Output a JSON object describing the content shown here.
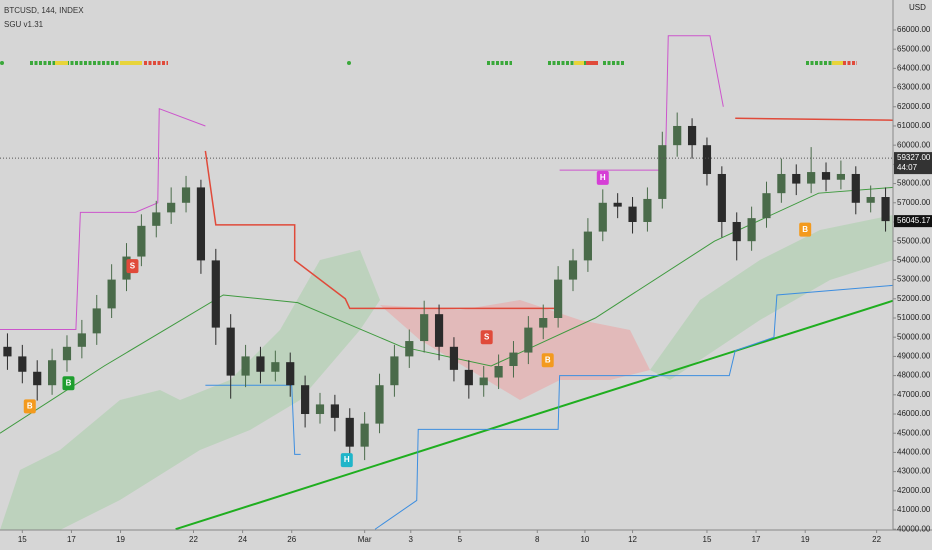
{
  "header": {
    "symbol": "BTCUSD, 144, INDEX",
    "indicator": "SGU v1.31",
    "currency": "USD"
  },
  "chart_data": {
    "type": "candlestick",
    "ylim": [
      39960,
      67560
    ],
    "xlim": [
      0,
      60
    ],
    "yticks": [
      {
        "value": 40000,
        "label": "40000.00"
      },
      {
        "value": 41000,
        "label": "41000.00"
      },
      {
        "value": 42000,
        "label": "42000.00"
      },
      {
        "value": 43000,
        "label": "43000.00"
      },
      {
        "value": 44000,
        "label": "44000.00"
      },
      {
        "value": 45000,
        "label": "45000.00"
      },
      {
        "value": 46000,
        "label": "46000.00"
      },
      {
        "value": 47000,
        "label": "47000.00"
      },
      {
        "value": 48000,
        "label": "48000.00"
      },
      {
        "value": 49000,
        "label": "49000.00"
      },
      {
        "value": 50000,
        "label": "50000.00"
      },
      {
        "value": 51000,
        "label": "51000.00"
      },
      {
        "value": 52000,
        "label": "52000.00"
      },
      {
        "value": 53000,
        "label": "53000.00"
      },
      {
        "value": 54000,
        "label": "54000.00"
      },
      {
        "value": 55000,
        "label": "55000.00"
      },
      {
        "value": 56000,
        "label": "56000.00"
      },
      {
        "value": 57000,
        "label": "57000.00"
      },
      {
        "value": 58000,
        "label": "58000.00"
      },
      {
        "value": 59000,
        "label": "59000.00"
      },
      {
        "value": 60000,
        "label": "60000.00"
      },
      {
        "value": 61000,
        "label": "61000.00"
      },
      {
        "value": 62000,
        "label": "62000.00"
      },
      {
        "value": 63000,
        "label": "63000.00"
      },
      {
        "value": 64000,
        "label": "64000.00"
      },
      {
        "value": 65000,
        "label": "65000.00"
      },
      {
        "value": 66000,
        "label": "66000.00"
      }
    ],
    "xticks": [
      {
        "value": 1.5,
        "label": "15"
      },
      {
        "value": 4.8,
        "label": "17"
      },
      {
        "value": 8.1,
        "label": "19"
      },
      {
        "value": 13.0,
        "label": "22"
      },
      {
        "value": 16.3,
        "label": "24"
      },
      {
        "value": 19.6,
        "label": "26"
      },
      {
        "value": 24.5,
        "label": "Mar"
      },
      {
        "value": 27.6,
        "label": "3"
      },
      {
        "value": 30.9,
        "label": "5"
      },
      {
        "value": 36.1,
        "label": "8"
      },
      {
        "value": 39.3,
        "label": "10"
      },
      {
        "value": 42.5,
        "label": "12"
      },
      {
        "value": 47.5,
        "label": "15"
      },
      {
        "value": 50.8,
        "label": "17"
      },
      {
        "value": 54.1,
        "label": "19"
      },
      {
        "value": 58.9,
        "label": "22"
      }
    ],
    "up_color": "#4a6b4a",
    "down_color": "#2b2b2b",
    "open": [
      49500,
      49000,
      48200,
      47500,
      48800,
      49500,
      50200,
      51500,
      53000,
      54200,
      55800,
      56500,
      57000,
      57800,
      54000,
      50500,
      48000,
      49000,
      48200,
      48700,
      47500,
      46000,
      46500,
      45800,
      44300,
      45500,
      47500,
      49000,
      49800,
      51200,
      49500,
      48300,
      47500,
      47900,
      48500,
      49200,
      50500,
      51000,
      53000,
      54000,
      55500,
      57000,
      56800,
      56000,
      57200,
      60000,
      61000,
      60000,
      58500,
      56000,
      55000,
      56200,
      57500,
      58500,
      58000,
      58600,
      58200,
      58500,
      57000,
      57300
    ],
    "high": [
      50200,
      49600,
      48800,
      49400,
      50100,
      50900,
      52200,
      53800,
      54900,
      56400,
      57100,
      57800,
      58400,
      58200,
      54600,
      51200,
      49600,
      49500,
      49300,
      49200,
      48000,
      47100,
      47000,
      46300,
      46100,
      48100,
      49600,
      50400,
      51900,
      51700,
      50000,
      48800,
      48500,
      49100,
      49800,
      51100,
      51700,
      53700,
      54600,
      56200,
      57700,
      57500,
      57300,
      57800,
      60700,
      61700,
      61400,
      60400,
      58900,
      56500,
      56800,
      58100,
      59300,
      59000,
      59900,
      59100,
      59200,
      58900,
      57900,
      57800
    ],
    "low": [
      48300,
      47600,
      46700,
      47000,
      48200,
      48900,
      49600,
      51000,
      52400,
      53700,
      55200,
      55900,
      56500,
      53300,
      49600,
      46800,
      47400,
      47600,
      47700,
      46900,
      45300,
      45500,
      45100,
      43300,
      43600,
      45000,
      46900,
      48400,
      49200,
      48800,
      47700,
      46800,
      46900,
      47300,
      47900,
      48600,
      49900,
      50500,
      52400,
      53400,
      55000,
      56200,
      55400,
      55500,
      56700,
      59400,
      59300,
      57900,
      55200,
      54000,
      54500,
      55700,
      57000,
      57400,
      57500,
      57600,
      57700,
      56400,
      56500,
      55500
    ],
    "close": [
      49000,
      48200,
      47500,
      48800,
      49500,
      50200,
      51500,
      53000,
      54200,
      55800,
      56500,
      57000,
      57800,
      54000,
      50500,
      48000,
      49000,
      48200,
      48700,
      47500,
      46000,
      46500,
      45800,
      44300,
      45500,
      47500,
      49000,
      49800,
      51200,
      49500,
      48300,
      47500,
      47900,
      48500,
      49200,
      50500,
      51000,
      53000,
      54000,
      55500,
      57000,
      56800,
      56000,
      57200,
      60000,
      61000,
      60000,
      58500,
      56000,
      55000,
      56200,
      57500,
      58500,
      58000,
      58600,
      58200,
      58500,
      57000,
      57300,
      56045.17
    ],
    "series": [
      {
        "color": "#1fae1f",
        "width": 2,
        "x": [
          11.8,
          60
        ],
        "values": [
          40000,
          51900
        ]
      },
      {
        "color": "#3f9a3f",
        "width": 1,
        "x": [
          0,
          7,
          15,
          20,
          27,
          33,
          40,
          48,
          55,
          60
        ],
        "values": [
          45000,
          48500,
          52200,
          51800,
          49500,
          48500,
          51000,
          55000,
          57500,
          57800
        ]
      },
      {
        "color": "#cc55cc",
        "width": 1,
        "x": [
          0,
          5.1,
          5.4,
          9.1,
          10.6,
          10.7,
          13.8,
          14,
          37.6,
          44.7,
          44.9,
          47.7,
          48.6
        ],
        "values": [
          50400,
          50400,
          56500,
          56500,
          57000,
          61900,
          61000,
          null,
          58700,
          58700,
          65700,
          65700,
          62000
        ]
      },
      {
        "color": "#e04a3a",
        "width": 1.5,
        "x": [
          13.8,
          14.5,
          19.8,
          19.8,
          23.2,
          23.5,
          37.3,
          38,
          49.4,
          60
        ],
        "values": [
          59700,
          55850,
          55850,
          54000,
          52000,
          51500,
          51500,
          null,
          61400,
          61300
        ]
      },
      {
        "color": "#3d8ee0",
        "width": 1,
        "x": [
          13.8,
          19.6,
          19.8,
          20.2,
          21,
          25.2,
          28,
          28.1,
          37.5,
          37.6,
          49,
          49.4,
          52,
          52.2,
          60
        ],
        "values": [
          47500,
          47500,
          43900,
          43900,
          null,
          40000,
          41500,
          45200,
          45200,
          48000,
          48000,
          49300,
          50000,
          52200,
          52700
        ]
      }
    ],
    "annotations": [
      {
        "text": "B",
        "x": 2.0,
        "y": 46400,
        "color": "#f39a1e"
      },
      {
        "text": "B",
        "x": 4.6,
        "y": 47600,
        "color": "#1e9e2e"
      },
      {
        "text": "S",
        "x": 8.9,
        "y": 53700,
        "color": "#e04a3a"
      },
      {
        "text": "H",
        "x": 23.3,
        "y": 43600,
        "color": "#1fb5c9"
      },
      {
        "text": "S",
        "x": 32.7,
        "y": 50000,
        "color": "#e04a3a"
      },
      {
        "text": "B",
        "x": 36.8,
        "y": 48800,
        "color": "#f39a1e"
      },
      {
        "text": "H",
        "x": 40.5,
        "y": 58300,
        "color": "#d63fd6"
      },
      {
        "text": "B",
        "x": 54.1,
        "y": 55600,
        "color": "#f39a1e"
      }
    ],
    "price_lines": [
      {
        "value": 59327.0,
        "label": "59327.00",
        "sub": "44:07",
        "color": "#333333"
      },
      {
        "value": 56045.17,
        "label": "56045.17",
        "color": "#111111"
      }
    ]
  }
}
